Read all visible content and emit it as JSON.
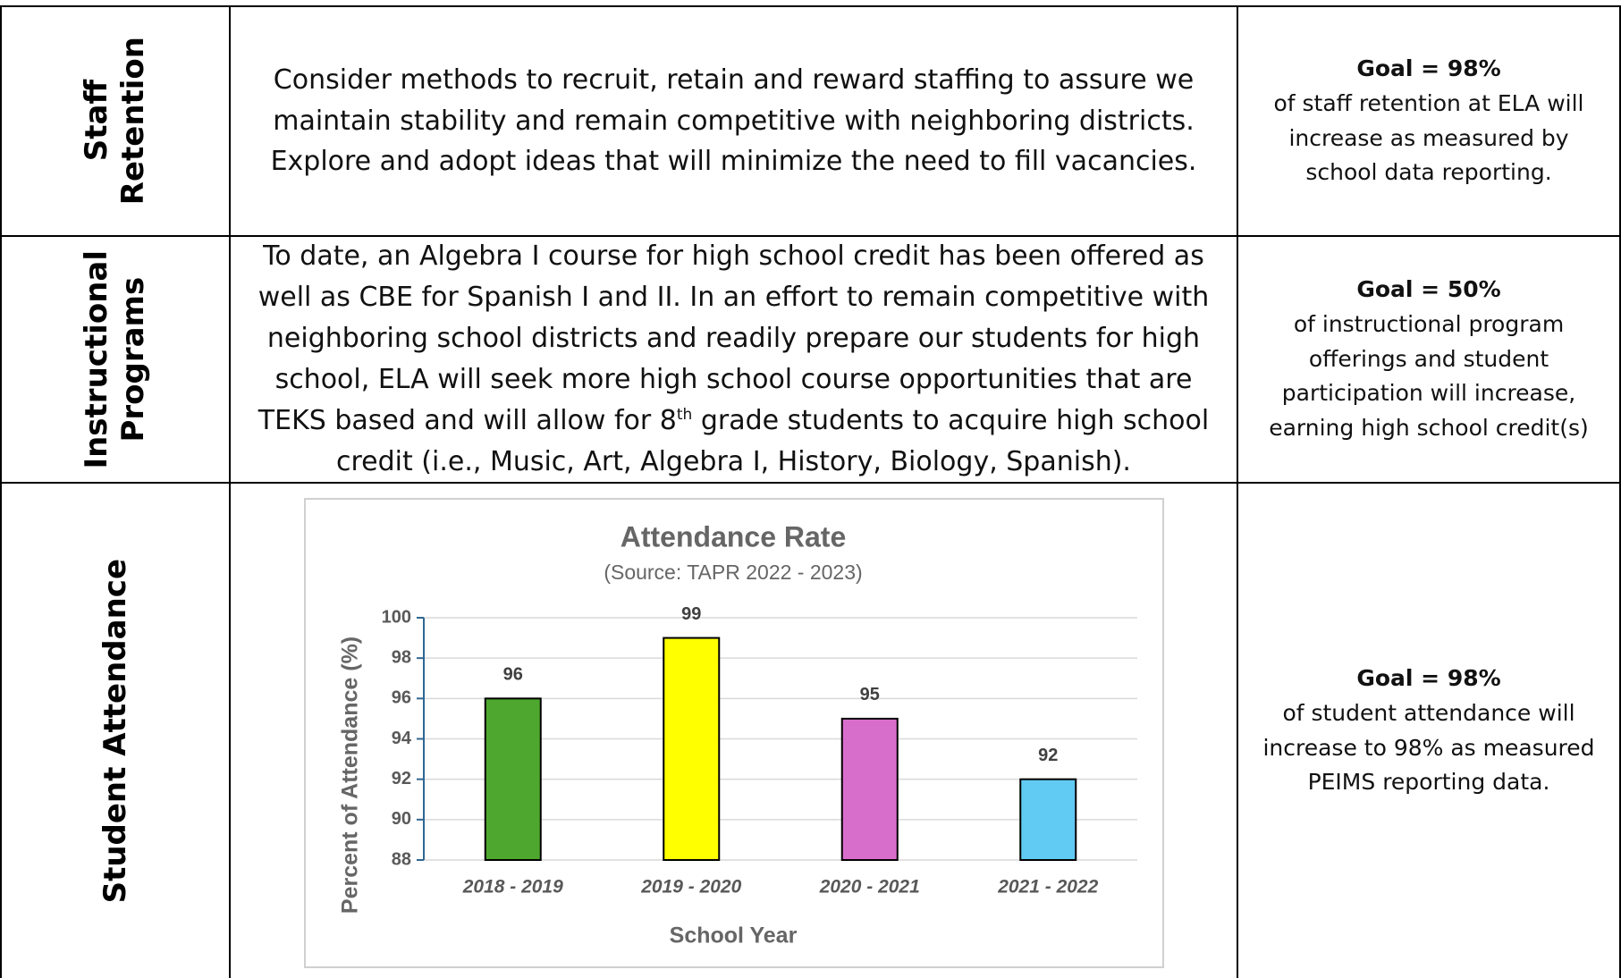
{
  "table": {
    "rows": [
      {
        "label": [
          "Staff",
          "Retention"
        ],
        "description": [
          "Consider methods to recruit, retain and reward staffing to assure we maintain stability and remain competitive with neighboring districts. Explore and adopt ideas that will minimize the need to fill vacancies."
        ],
        "goal_title": "Goal = 98%",
        "goal_text": "of staff retention at ELA will increase as measured by school data reporting."
      },
      {
        "label": [
          "Instructional",
          "Programs"
        ],
        "description": [
          "To date, an Algebra I course for high school credit has been offered as well as CBE for Spanish I and II. In an effort to remain competitive with neighboring school districts and readily prepare our students for high school, ELA will seek more high school course opportunities that are TEKS based and will allow for 8",
          "th",
          " grade students to acquire high school credit (i.e., Music, Art, Algebra I, History, Biology, Spanish)."
        ],
        "goal_title": "Goal = 50%",
        "goal_text": "of instructional program offerings and student participation will increase, earning high school credit(s)"
      },
      {
        "label": [
          "Student Attendance"
        ],
        "goal_title": "Goal = 98%",
        "goal_text": "of student attendance will increase to 98% as measured PEIMS reporting data."
      }
    ]
  },
  "chart_data": {
    "type": "bar",
    "title": "Attendance Rate",
    "subtitle": "(Source: TAPR 2022 - 2023)",
    "x_label": "School Year",
    "y_label": "Percent of Attendance (%)",
    "categories": [
      "2018 - 2019",
      "2019 - 2020",
      "2020 - 2021",
      "2021 - 2022"
    ],
    "values": [
      96,
      99,
      95,
      92
    ],
    "colors": [
      "#4ea72e",
      "#ffff00",
      "#d86ecc",
      "#61cbf3"
    ],
    "ylim": [
      88,
      100
    ],
    "yticks": [
      88,
      90,
      92,
      94,
      96,
      98,
      100
    ],
    "grid": true
  }
}
